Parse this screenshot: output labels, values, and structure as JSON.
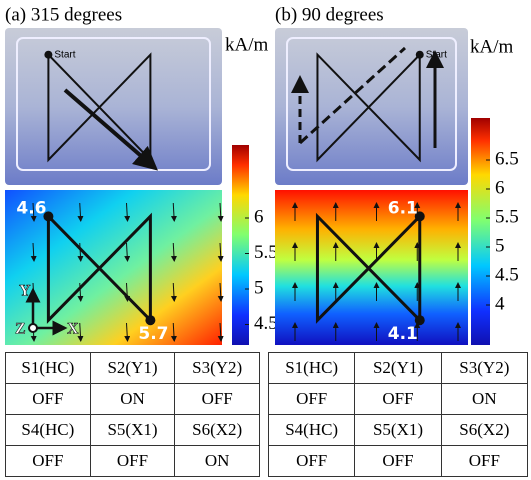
{
  "panels": [
    {
      "title": "(a) 315 degrees",
      "unit": "kA/m",
      "start_label": "Start",
      "colorbar_ticks": [
        6,
        5.5,
        5,
        4.5
      ],
      "start_value": 4.6,
      "end_value": 5.7,
      "axis_labels": [
        "Y",
        "Z",
        "X"
      ],
      "table": [
        [
          "S1(HC)",
          "S2(Y1)",
          "S3(Y2)"
        ],
        [
          "OFF",
          "ON",
          "OFF"
        ],
        [
          "S4(HC)",
          "S5(X1)",
          "S6(X2)"
        ],
        [
          "OFF",
          "OFF",
          "ON"
        ]
      ]
    },
    {
      "title": "(b) 90 degrees",
      "unit": "kA/m",
      "start_label": "Start",
      "colorbar_ticks": [
        6.5,
        6,
        5.5,
        5,
        4.5,
        4
      ],
      "start_value": 6.1,
      "end_value": 4.1,
      "table": [
        [
          "S1(HC)",
          "S2(Y1)",
          "S3(Y2)"
        ],
        [
          "OFF",
          "OFF",
          "ON"
        ],
        [
          "S4(HC)",
          "S5(X1)",
          "S6(X2)"
        ],
        [
          "OFF",
          "OFF",
          "OFF"
        ]
      ]
    }
  ]
}
